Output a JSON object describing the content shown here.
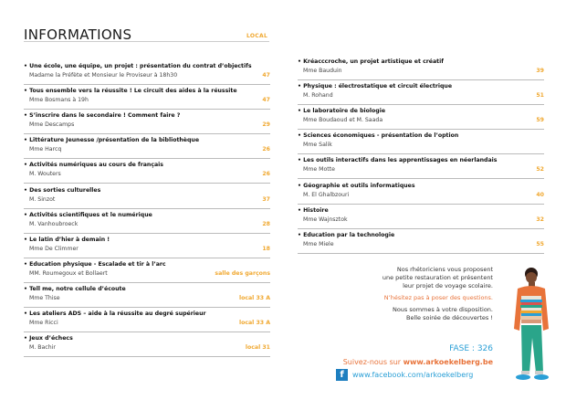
{
  "header": {
    "title": "INFORMATIONS",
    "location_label": "LOCAL"
  },
  "left_items": [
    {
      "title": "Une école, une équipe, un projet : présentation du contrat d’objectifs",
      "presenter": "Madame la Préfète et Monsieur le Proviseur à 18h30",
      "local": "47"
    },
    {
      "title": "Tous ensemble vers la réussite ! Le circuit des aides à la réussite",
      "presenter": "Mme Bosmans à 19h",
      "local": "47"
    },
    {
      "title": "S’inscrire dans le secondaire ! Comment faire ?",
      "presenter": "Mme Descamps",
      "local": "29"
    },
    {
      "title": "Littérature Jeunesse /présentation de la bibliothèque",
      "presenter": "Mme Harcq",
      "local": "26"
    },
    {
      "title": "Activités numériques au cours de français",
      "presenter": "M. Wouters",
      "local": "26"
    },
    {
      "title": "Des sorties culturelles",
      "presenter": "M. Sinzot",
      "local": "37"
    },
    {
      "title": "Activités scientifiques et le numérique",
      "presenter": "M. Vanhoubroeck",
      "local": "28"
    },
    {
      "title": "Le latin d’hier à demain !",
      "presenter": "Mme De Climmer",
      "local": "18"
    },
    {
      "title": "Education physique - Escalade et tir à l’arc",
      "presenter": "MM. Roumegoux et Bollaert",
      "local": "salle des garçons"
    },
    {
      "title": "Tell me, notre cellule d’écoute",
      "presenter": "Mme Thise",
      "local": "local 33 A"
    },
    {
      "title": "Les ateliers ADS – aide à la réussite au degré supérieur",
      "presenter": "Mme Ricci",
      "local": "local 33 A"
    },
    {
      "title": "Jeux d’échecs",
      "presenter": "M. Bachir",
      "local": "local 31"
    }
  ],
  "right_items": [
    {
      "title": "Kréacccroche, un projet artistique et créatif",
      "presenter": "Mme Bauduin",
      "local": "39"
    },
    {
      "title": "Physique : électrostatique et circuit électrique",
      "presenter": "M. Rohand",
      "local": "51"
    },
    {
      "title": "Le laboratoire de biologie",
      "presenter": "Mme Boudaoud et M. Saada",
      "local": "59"
    },
    {
      "title": "Sciences économiques - présentation de l’option",
      "presenter": "Mme Salik",
      "local": ""
    },
    {
      "title": "Les outils interactifs dans les apprentissages en néerlandais",
      "presenter": "Mme Motte",
      "local": "52"
    },
    {
      "title": "Géographie et outils informatiques",
      "presenter": "M. El Ghalbzouri",
      "local": "40"
    },
    {
      "title": "Histoire",
      "presenter": "Mme Wajnsztok",
      "local": "32"
    },
    {
      "title": "Education par la technologie",
      "presenter": "Mme Miele",
      "local": "55"
    }
  ],
  "promo": {
    "line1": "Nos rhétoriciens vous proposent",
    "line2": "une petite restauration et présentent",
    "line3": "leur projet de voyage scolaire.",
    "questions": "N’hésitez pas à poser des questions.",
    "line4": "Nous sommes à votre disposition.",
    "line5": "Belle soirée de découvertes !"
  },
  "footer": {
    "fase": "FASE : 326",
    "follow_prefix": "Suivez-nous sur ",
    "website": "www.arkoekelberg.be",
    "facebook_icon": "f",
    "facebook_url": "www.facebook.com/arkoekelberg"
  },
  "colors": {
    "accent": "#f0a830",
    "orange": "#e8733a",
    "blue": "#2a9fd6"
  }
}
